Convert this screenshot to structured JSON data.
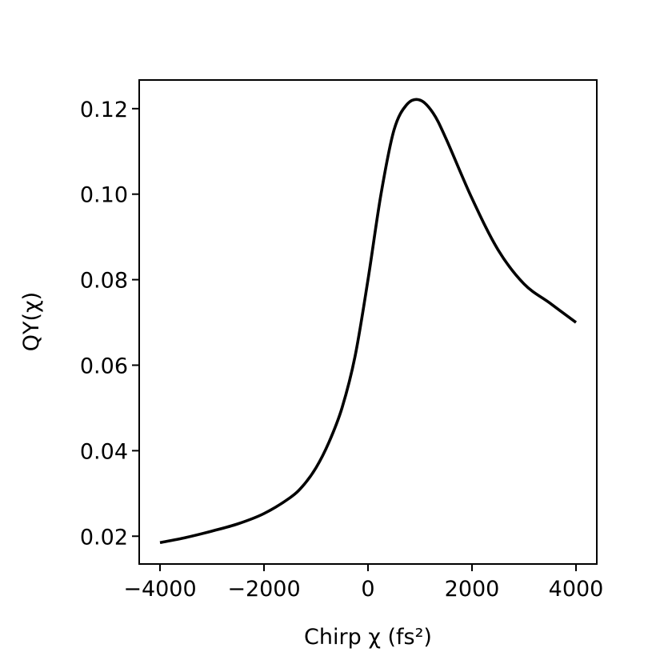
{
  "chart_data": {
    "type": "line",
    "title": "",
    "xlabel": "Chirp χ (fs²)",
    "ylabel": "QY(χ)",
    "xlim": [
      -4400,
      4400
    ],
    "ylim": [
      0.0135,
      0.1267
    ],
    "x_ticks": [
      -4000,
      -2000,
      0,
      2000,
      4000
    ],
    "x_tick_labels": [
      "−4000",
      "−2000",
      "0",
      "2000",
      "4000"
    ],
    "y_ticks": [
      0.02,
      0.04,
      0.06,
      0.08,
      0.1,
      0.12
    ],
    "y_tick_labels": [
      "0.02",
      "0.04",
      "0.06",
      "0.08",
      "0.10",
      "0.12"
    ],
    "grid": false,
    "line_color": "#000000",
    "series": [
      {
        "x": [
          -4000,
          -3500,
          -3000,
          -2500,
          -2000,
          -1500,
          -1250,
          -1000,
          -750,
          -500,
          -250,
          0,
          250,
          500,
          750,
          1000,
          1250,
          1500,
          2000,
          2500,
          3000,
          3500,
          4000
        ],
        "values": [
          0.0185,
          0.0197,
          0.0212,
          0.0229,
          0.0253,
          0.029,
          0.0318,
          0.036,
          0.042,
          0.05,
          0.062,
          0.08,
          0.1,
          0.115,
          0.121,
          0.122,
          0.119,
          0.113,
          0.099,
          0.087,
          0.079,
          0.0745,
          0.07
        ]
      }
    ]
  }
}
